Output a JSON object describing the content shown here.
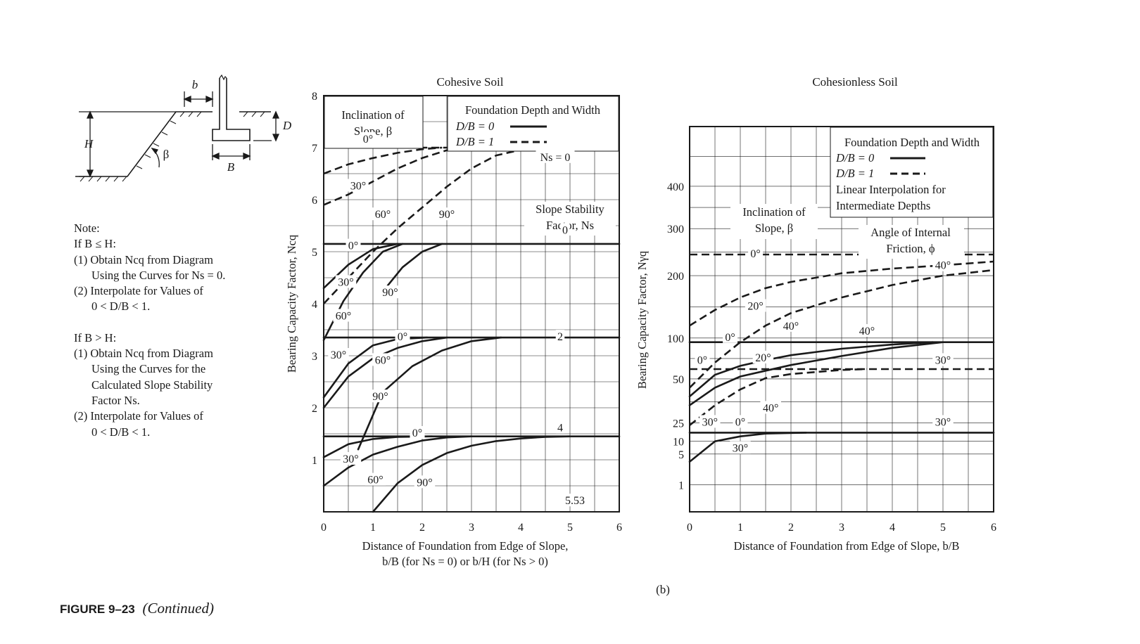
{
  "figure": {
    "label": "FIGURE 9–23",
    "continued": "(Continued)",
    "part": "(b)"
  },
  "sketch": {
    "labels": [
      "b",
      "H",
      "D",
      "β",
      "B"
    ]
  },
  "note": {
    "title": "Note:",
    "lines": [
      "If B ≤ H:",
      "(1) Obtain Ncq from Diagram",
      "Using the Curves for Ns = 0.",
      "(2) Interpolate for Values of",
      "0 < D/B < 1.",
      "If B > H:",
      "(1) Obtain Ncq from Diagram",
      "Using the Curves for the",
      "Calculated Slope Stability",
      "Factor Ns.",
      "(2) Interpolate for Values of",
      "0 < D/B < 1."
    ]
  },
  "colors": {
    "ink": "#1a1a1a",
    "paper": "#ffffff"
  },
  "chart_data": [
    {
      "type": "line",
      "title": "Cohesive Soil",
      "xlabel": "Distance of Foundation from Edge of Slope,",
      "xlabel2": "b/B (for Ns = 0) or b/H (for Ns > 0)",
      "ylabel": "Bearing Capacity Factor, Ncq",
      "xlim": [
        0,
        6
      ],
      "ylim": [
        0,
        8
      ],
      "x_ticks": [
        0,
        1,
        2,
        3,
        4,
        5,
        6
      ],
      "y_ticks": [
        1,
        2,
        3,
        4,
        5,
        6,
        7,
        8
      ],
      "grid": true,
      "legend": {
        "title": "Foundation Depth and Width",
        "entries": [
          {
            "label": "D/B = 0",
            "style": "solid"
          },
          {
            "label": "D/B = 1",
            "style": "dashed"
          }
        ]
      },
      "inclination_box": "Inclination of Slope, β",
      "stability_box": "Slope Stability Factor, Ns",
      "annotations": [
        {
          "text": "0°",
          "x": 0.9,
          "y": 7.15
        },
        {
          "text": "30°",
          "x": 0.7,
          "y": 6.25
        },
        {
          "text": "60°",
          "x": 1.2,
          "y": 5.7
        },
        {
          "text": "90°",
          "x": 2.5,
          "y": 5.7
        },
        {
          "text": "Ns = 0",
          "x": 4.7,
          "y": 6.8
        },
        {
          "text": "0",
          "x": 4.9,
          "y": 5.4
        },
        {
          "text": "0°",
          "x": 0.6,
          "y": 5.1
        },
        {
          "text": "30°",
          "x": 0.45,
          "y": 4.4
        },
        {
          "text": "90°",
          "x": 1.35,
          "y": 4.2
        },
        {
          "text": "60°",
          "x": 0.4,
          "y": 3.75
        },
        {
          "text": "0°",
          "x": 1.6,
          "y": 3.35
        },
        {
          "text": "2",
          "x": 4.8,
          "y": 3.35
        },
        {
          "text": "30°",
          "x": 0.3,
          "y": 3.0
        },
        {
          "text": "60°",
          "x": 1.2,
          "y": 2.9
        },
        {
          "text": "90°",
          "x": 1.15,
          "y": 2.2
        },
        {
          "text": "0°",
          "x": 1.9,
          "y": 1.5
        },
        {
          "text": "4",
          "x": 4.8,
          "y": 1.6
        },
        {
          "text": "30°",
          "x": 0.55,
          "y": 1.0
        },
        {
          "text": "60°",
          "x": 1.05,
          "y": 0.6
        },
        {
          "text": "90°",
          "x": 2.05,
          "y": 0.55
        },
        {
          "text": "5.53",
          "x": 5.1,
          "y": 0.2
        }
      ],
      "series": [
        {
          "name": "Ns=0, D/B=1, β=0°",
          "style": "dashed",
          "x": [
            0,
            6
          ],
          "y": [
            7.0,
            7.0
          ]
        },
        {
          "name": "Ns=0, D/B=1, β=30°",
          "style": "dashed",
          "x": [
            0,
            0.5,
            1,
            1.5,
            2,
            2.4
          ],
          "y": [
            6.5,
            6.68,
            6.8,
            6.9,
            6.97,
            7.0
          ]
        },
        {
          "name": "Ns=0, D/B=1, β=60°",
          "style": "dashed",
          "x": [
            0,
            0.5,
            1,
            1.5,
            2,
            2.5,
            3.0
          ],
          "y": [
            5.9,
            6.1,
            6.35,
            6.6,
            6.8,
            6.95,
            7.0
          ]
        },
        {
          "name": "Ns=0, D/B=1, β=90°",
          "style": "dashed",
          "x": [
            0,
            0.5,
            1,
            1.5,
            2,
            2.5,
            3,
            3.5,
            4.2
          ],
          "y": [
            4.0,
            4.5,
            5.0,
            5.45,
            5.85,
            6.25,
            6.6,
            6.85,
            7.0
          ]
        },
        {
          "name": "Ns=0, D/B=0, β=0°",
          "style": "solid",
          "x": [
            0,
            6
          ],
          "y": [
            5.15,
            5.15
          ]
        },
        {
          "name": "Ns=0, D/B=0, β=30°",
          "style": "solid",
          "x": [
            0,
            0.5,
            1,
            1.5
          ],
          "y": [
            4.3,
            4.75,
            5.05,
            5.15
          ]
        },
        {
          "name": "Ns=0, D/B=0, β=60°",
          "style": "solid",
          "x": [
            0,
            0.4,
            0.8,
            1.2,
            1.6
          ],
          "y": [
            3.3,
            4.05,
            4.6,
            5.0,
            5.15
          ]
        },
        {
          "name": "Ns=0, D/B=0, β=90°",
          "style": "solid",
          "x": [
            1.3,
            1.6,
            2.0,
            2.4
          ],
          "y": [
            4.35,
            4.7,
            5.0,
            5.15
          ]
        },
        {
          "name": "Ns=2, D/B=0, β=0°",
          "style": "solid",
          "x": [
            0,
            6
          ],
          "y": [
            3.35,
            3.35
          ]
        },
        {
          "name": "Ns=2, D/B=0, β=30°",
          "style": "solid",
          "x": [
            0,
            0.5,
            1,
            1.5,
            2.1
          ],
          "y": [
            2.2,
            2.85,
            3.2,
            3.32,
            3.35
          ]
        },
        {
          "name": "Ns=2, D/B=0, β=60°",
          "style": "solid",
          "x": [
            0,
            0.5,
            1,
            1.5,
            2,
            2.5
          ],
          "y": [
            2.0,
            2.6,
            2.95,
            3.15,
            3.28,
            3.35
          ]
        },
        {
          "name": "Ns=2, D/B=0, β=90°",
          "style": "solid",
          "x": [
            0.7,
            1.2,
            1.8,
            2.4,
            3.0,
            3.6
          ],
          "y": [
            1.2,
            2.3,
            2.8,
            3.1,
            3.28,
            3.35
          ]
        },
        {
          "name": "Ns=4, D/B=0, β=0°",
          "style": "solid",
          "x": [
            0,
            6
          ],
          "y": [
            1.45,
            1.45
          ]
        },
        {
          "name": "Ns=4, D/B=0, β=30°",
          "style": "solid",
          "x": [
            0,
            0.5,
            1,
            1.5,
            2.2
          ],
          "y": [
            1.05,
            1.3,
            1.4,
            1.44,
            1.45
          ]
        },
        {
          "name": "Ns=4, D/B=0, β=60°",
          "style": "solid",
          "x": [
            0,
            0.5,
            1,
            1.5,
            2,
            2.5,
            3.0
          ],
          "y": [
            0.5,
            0.85,
            1.1,
            1.25,
            1.37,
            1.43,
            1.45
          ]
        },
        {
          "name": "Ns=4, D/B=0, β=90°",
          "style": "solid",
          "x": [
            1.0,
            1.5,
            2,
            2.5,
            3,
            3.5,
            4,
            4.5,
            5.0
          ],
          "y": [
            0,
            0.55,
            0.9,
            1.13,
            1.27,
            1.36,
            1.41,
            1.44,
            1.45
          ]
        }
      ]
    },
    {
      "type": "line",
      "title": "Cohesionless Soil",
      "xlabel": "Distance of Foundation from Edge of Slope, b/B",
      "ylabel": "Bearing Capacity Factor, Nγq",
      "xlim": [
        0,
        6
      ],
      "x_ticks": [
        0,
        1,
        2,
        3,
        4,
        5,
        6
      ],
      "y_tick_labels": [
        "1",
        "5",
        "10",
        "25",
        "50",
        "100",
        "200",
        "300",
        "400"
      ],
      "grid": true,
      "legend": {
        "title": "Foundation Depth and Width",
        "entries": [
          {
            "label": "D/B = 0",
            "style": "solid"
          },
          {
            "label": "D/B = 1",
            "style": "dashed"
          }
        ],
        "note": "Linear Interpolation for Intermediate Depths"
      },
      "inclination_box": "Inclination of Slope, β",
      "friction_box": "Angle of Internal Friction, ϕ",
      "annotations": [
        {
          "text": "0°",
          "x": 1.3,
          "y": 245
        },
        {
          "text": "40°",
          "x": 5.0,
          "y": 220
        },
        {
          "text": "20°",
          "x": 1.3,
          "y": 150
        },
        {
          "text": "40°",
          "x": 2.0,
          "y": 118
        },
        {
          "text": "40°",
          "x": 3.5,
          "y": 110
        },
        {
          "text": "0°",
          "x": 0.8,
          "y": 100
        },
        {
          "text": "0°",
          "x": 0.25,
          "y": 72
        },
        {
          "text": "20°",
          "x": 1.45,
          "y": 75
        },
        {
          "text": "30°",
          "x": 5.0,
          "y": 72
        },
        {
          "text": "40°",
          "x": 1.6,
          "y": 33
        },
        {
          "text": "30°",
          "x": 0.4,
          "y": 25
        },
        {
          "text": "0°",
          "x": 1.0,
          "y": 25
        },
        {
          "text": "30°",
          "x": 5.0,
          "y": 25
        },
        {
          "text": "30°",
          "x": 1.0,
          "y": 7
        }
      ],
      "series": [
        {
          "name": "ϕ=40°, D/B=1, β=0°",
          "style": "dashed",
          "x": [
            0,
            6
          ],
          "y": [
            245,
            245
          ]
        },
        {
          "name": "ϕ=40°, D/B=1, β=20°",
          "style": "dashed",
          "x": [
            0,
            0.5,
            1,
            1.5,
            2,
            3,
            4,
            5,
            6
          ],
          "y": [
            120,
            145,
            165,
            180,
            190,
            205,
            215,
            222,
            230
          ]
        },
        {
          "name": "ϕ=40°, D/B=1, β=40°",
          "style": "dashed",
          "x": [
            0,
            0.5,
            1,
            1.5,
            2,
            3,
            4,
            5,
            6
          ],
          "y": [
            45,
            70,
            95,
            120,
            140,
            165,
            185,
            200,
            212
          ]
        },
        {
          "name": "ϕ=40°, D/B=0, β=0°",
          "style": "solid",
          "x": [
            0,
            6
          ],
          "y": [
            95,
            95
          ]
        },
        {
          "name": "ϕ=40°, D/B=0, β=20°",
          "style": "solid",
          "x": [
            0,
            0.5,
            1,
            1.5,
            2,
            3,
            4,
            4.8
          ],
          "y": [
            40,
            55,
            66,
            73,
            79,
            87,
            92,
            95
          ]
        },
        {
          "name": "ϕ=40°, D/B=0, β=40°",
          "style": "solid",
          "x": [
            0,
            0.5,
            1,
            1.5,
            2,
            3,
            4,
            5
          ],
          "y": [
            35,
            45,
            53,
            60,
            67,
            78,
            88,
            95
          ]
        },
        {
          "name": "ϕ=30°, D/B=1, β=0°",
          "style": "dashed",
          "x": [
            0,
            6
          ],
          "y": [
            62,
            62
          ]
        },
        {
          "name": "ϕ=30°, D/B=1, β=30°",
          "style": "dashed",
          "x": [
            0,
            0.5,
            1,
            1.5,
            2,
            3,
            3.5
          ],
          "y": [
            23,
            35,
            44,
            51,
            56,
            61,
            62
          ]
        },
        {
          "name": "ϕ=30°, D/B=0, β=0°",
          "style": "solid",
          "x": [
            0,
            6
          ],
          "y": [
            17,
            17
          ]
        },
        {
          "name": "ϕ=30°, D/B=0, β=30°",
          "style": "solid",
          "x": [
            0,
            0.5,
            1,
            1.5,
            2.3
          ],
          "y": [
            4,
            10,
            14,
            16.3,
            17
          ]
        }
      ]
    }
  ]
}
